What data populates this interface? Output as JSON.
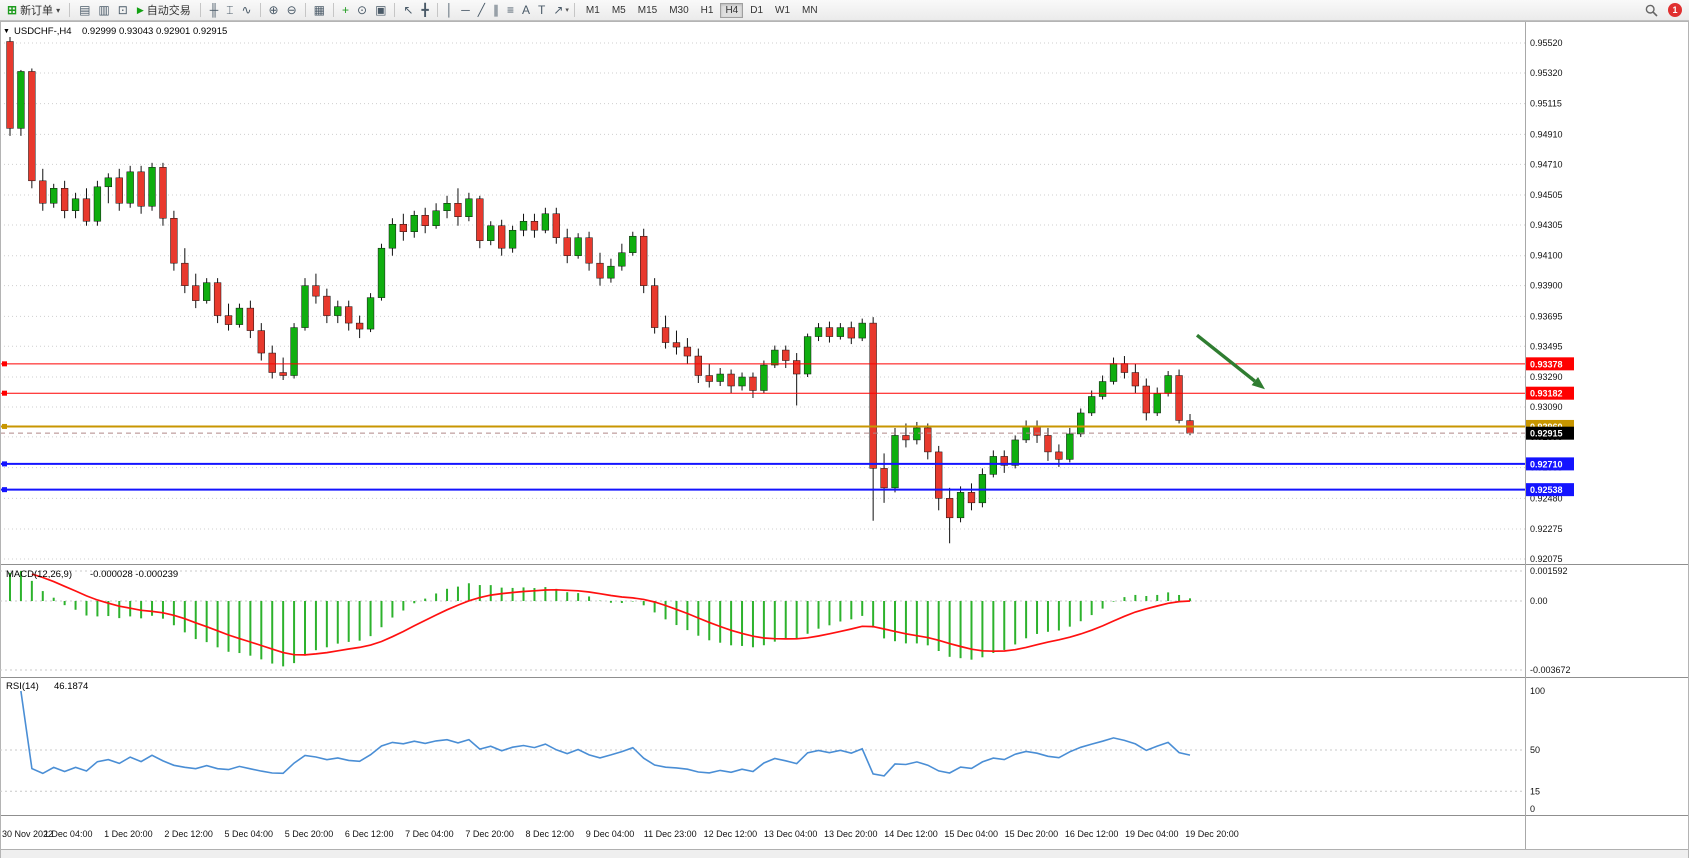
{
  "toolbar": {
    "new_order_label": "新订单",
    "auto_trading_label": "自动交易",
    "badge_count": "1",
    "active_timeframe": "H4",
    "timeframes": [
      "M1",
      "M5",
      "M15",
      "M30",
      "H1",
      "H4",
      "D1",
      "W1",
      "MN"
    ],
    "icons": {
      "new_order": "⊞",
      "caret": "▾",
      "play": "▶"
    },
    "pre_group": [
      {
        "name": "new-chart-icon",
        "glyph": "▤"
      },
      {
        "name": "profiles-icon",
        "glyph": "▥"
      },
      {
        "name": "data-window-icon",
        "glyph": "⊡"
      }
    ],
    "tool_groups": [
      [
        {
          "name": "bar-chart-icon",
          "glyph": "╫"
        },
        {
          "name": "candlestick-chart-icon",
          "glyph": "⌶"
        },
        {
          "name": "line-chart-icon",
          "glyph": "∿"
        }
      ],
      [
        {
          "name": "zoom-in-icon",
          "glyph": "⊕"
        },
        {
          "name": "zoom-out-icon",
          "glyph": "⊖"
        }
      ],
      [
        {
          "name": "tile-windows-icon",
          "glyph": "▦"
        }
      ],
      [
        {
          "name": "indicators-icon",
          "glyph": "+",
          "color": "#1f9c1f"
        },
        {
          "name": "periods-icon",
          "glyph": "⊙"
        },
        {
          "name": "templates-icon",
          "glyph": "▣"
        }
      ],
      [
        {
          "name": "cursor-icon",
          "glyph": "↖"
        },
        {
          "name": "crosshair-icon",
          "glyph": "╋"
        }
      ],
      [
        {
          "name": "vertical-line-icon",
          "glyph": "│"
        },
        {
          "name": "horizontal-line-icon",
          "glyph": "─"
        },
        {
          "name": "trendline-icon",
          "glyph": "╱"
        },
        {
          "name": "channel-icon",
          "glyph": "∥"
        },
        {
          "name": "fibonacci-icon",
          "glyph": "≡"
        },
        {
          "name": "text-icon",
          "glyph": "A"
        },
        {
          "name": "label-icon",
          "glyph": "T"
        },
        {
          "name": "arrows-icon",
          "glyph": "↗",
          "caret": true
        }
      ]
    ]
  },
  "chart_data": {
    "type": "candlestick",
    "symbol": "USDCHF-",
    "period": "H4",
    "title": "USDCHF-,H4",
    "ohlc_text": "0.92999 0.93043 0.92901 0.92915",
    "icons": {
      "chart_menu": "▼"
    },
    "price_factor": 1e-05,
    "price_range": {
      "top": 0.9552,
      "bottom": 0.92075
    },
    "price_axis_ticks": [
      "0.95520",
      "0.95320",
      "0.95115",
      "0.94910",
      "0.94710",
      "0.94505",
      "0.94305",
      "0.94100",
      "0.93900",
      "0.93695",
      "0.93495",
      "0.93290",
      "0.93090",
      "0.92890",
      "0.92685",
      "0.92480",
      "0.92275",
      "0.92075"
    ],
    "time_labels": [
      "30 Nov 2022",
      "1 Dec 04:00",
      "1 Dec 20:00",
      "2 Dec 12:00",
      "5 Dec 04:00",
      "5 Dec 20:00",
      "6 Dec 12:00",
      "7 Dec 04:00",
      "7 Dec 20:00",
      "8 Dec 12:00",
      "9 Dec 04:00",
      "11 Dec 23:00",
      "12 Dec 12:00",
      "13 Dec 04:00",
      "13 Dec 20:00",
      "14 Dec 12:00",
      "15 Dec 04:00",
      "15 Dec 20:00",
      "16 Dec 12:00",
      "19 Dec 04:00",
      "19 Dec 20:00"
    ],
    "levels": [
      {
        "value": 0.93378,
        "label": "0.93378",
        "color": "#ff0000",
        "width": 1
      },
      {
        "value": 0.93182,
        "label": "0.93182",
        "color": "#ff0000",
        "width": 1
      },
      {
        "value": 0.9296,
        "label": "0.92960",
        "color": "#c89600",
        "width": 2
      },
      {
        "value": 0.9271,
        "label": "0.92710",
        "color": "#1414ff",
        "width": 2
      },
      {
        "value": 0.92538,
        "label": "0.92538",
        "color": "#1414ff",
        "width": 2
      }
    ],
    "current_price": {
      "value": 0.92915,
      "label": "0.92915",
      "tag_color": "#000000"
    },
    "arrow": {
      "points_to_value": 0.93182,
      "color": "#2f7d31"
    },
    "colors": {
      "up": "#0fae0f",
      "down": "#e8392d",
      "wick": "#101010",
      "grid": "#cfcfcf",
      "macd_hist": "#2db22d",
      "macd_signal": "#ff1010",
      "rsi_line": "#4a8ed5",
      "background": "#ffffff"
    },
    "macd": {
      "name": "MACD(12,26,9)",
      "values_text": "-0.000028 -0.000239",
      "fast": 12,
      "slow": 26,
      "signal": 9,
      "scale_labels": [
        "0.001592",
        "0.00",
        "-0.003672"
      ]
    },
    "rsi": {
      "name": "RSI(14)",
      "value_text": "46.1874",
      "period": 14,
      "scale_labels": [
        "100",
        "50",
        "15",
        "0"
      ],
      "scale_values": [
        100,
        50,
        15,
        0
      ]
    },
    "candles": [
      [
        95530,
        95560,
        94900,
        94950
      ],
      [
        94950,
        95340,
        94900,
        95330
      ],
      [
        95330,
        95350,
        94550,
        94600
      ],
      [
        94600,
        94680,
        94400,
        94450
      ],
      [
        94450,
        94580,
        94420,
        94550
      ],
      [
        94550,
        94600,
        94350,
        94400
      ],
      [
        94400,
        94520,
        94350,
        94480
      ],
      [
        94480,
        94550,
        94300,
        94330
      ],
      [
        94330,
        94600,
        94300,
        94560
      ],
      [
        94560,
        94650,
        94450,
        94620
      ],
      [
        94620,
        94680,
        94400,
        94450
      ],
      [
        94450,
        94700,
        94420,
        94660
      ],
      [
        94660,
        94700,
        94380,
        94430
      ],
      [
        94430,
        94720,
        94400,
        94690
      ],
      [
        94690,
        94720,
        94300,
        94350
      ],
      [
        94350,
        94400,
        94000,
        94050
      ],
      [
        94050,
        94150,
        93850,
        93900
      ],
      [
        93900,
        93980,
        93750,
        93800
      ],
      [
        93800,
        93950,
        93780,
        93920
      ],
      [
        93920,
        93950,
        93650,
        93700
      ],
      [
        93700,
        93780,
        93600,
        93640
      ],
      [
        93640,
        93780,
        93620,
        93750
      ],
      [
        93750,
        93800,
        93550,
        93600
      ],
      [
        93600,
        93650,
        93400,
        93450
      ],
      [
        93450,
        93500,
        93280,
        93320
      ],
      [
        93320,
        93420,
        93270,
        93300
      ],
      [
        93300,
        93650,
        93280,
        93620
      ],
      [
        93620,
        93950,
        93600,
        93900
      ],
      [
        93900,
        93980,
        93780,
        93830
      ],
      [
        93830,
        93880,
        93650,
        93700
      ],
      [
        93700,
        93800,
        93650,
        93760
      ],
      [
        93760,
        93800,
        93600,
        93650
      ],
      [
        93650,
        93700,
        93550,
        93610
      ],
      [
        93610,
        93850,
        93590,
        93820
      ],
      [
        93820,
        94180,
        93800,
        94150
      ],
      [
        94150,
        94350,
        94100,
        94310
      ],
      [
        94310,
        94380,
        94200,
        94260
      ],
      [
        94260,
        94400,
        94220,
        94370
      ],
      [
        94370,
        94420,
        94250,
        94300
      ],
      [
        94300,
        94450,
        94280,
        94400
      ],
      [
        94400,
        94500,
        94350,
        94450
      ],
      [
        94450,
        94550,
        94300,
        94360
      ],
      [
        94360,
        94520,
        94330,
        94480
      ],
      [
        94480,
        94500,
        94150,
        94200
      ],
      [
        94200,
        94330,
        94170,
        94300
      ],
      [
        94300,
        94340,
        94100,
        94150
      ],
      [
        94150,
        94300,
        94120,
        94270
      ],
      [
        94270,
        94380,
        94230,
        94330
      ],
      [
        94330,
        94380,
        94220,
        94270
      ],
      [
        94270,
        94420,
        94250,
        94380
      ],
      [
        94380,
        94420,
        94180,
        94220
      ],
      [
        94220,
        94280,
        94050,
        94100
      ],
      [
        94100,
        94250,
        94080,
        94220
      ],
      [
        94220,
        94260,
        94000,
        94050
      ],
      [
        94050,
        94120,
        93900,
        93950
      ],
      [
        93950,
        94080,
        93920,
        94030
      ],
      [
        94030,
        94180,
        94000,
        94120
      ],
      [
        94120,
        94260,
        94100,
        94230
      ],
      [
        94230,
        94280,
        93850,
        93900
      ],
      [
        93900,
        93950,
        93580,
        93620
      ],
      [
        93620,
        93700,
        93480,
        93520
      ],
      [
        93520,
        93600,
        93440,
        93490
      ],
      [
        93490,
        93550,
        93380,
        93430
      ],
      [
        93430,
        93480,
        93250,
        93300
      ],
      [
        93300,
        93380,
        93220,
        93260
      ],
      [
        93260,
        93350,
        93230,
        93310
      ],
      [
        93310,
        93340,
        93180,
        93230
      ],
      [
        93230,
        93320,
        93200,
        93290
      ],
      [
        93290,
        93320,
        93150,
        93200
      ],
      [
        93200,
        93400,
        93180,
        93370
      ],
      [
        93370,
        93500,
        93350,
        93470
      ],
      [
        93470,
        93500,
        93350,
        93400
      ],
      [
        93400,
        93450,
        93100,
        93310
      ],
      [
        93310,
        93580,
        93290,
        93560
      ],
      [
        93560,
        93650,
        93530,
        93620
      ],
      [
        93620,
        93660,
        93520,
        93560
      ],
      [
        93560,
        93650,
        93540,
        93620
      ],
      [
        93620,
        93660,
        93510,
        93550
      ],
      [
        93550,
        93680,
        93530,
        93650
      ],
      [
        93650,
        93690,
        92330,
        92680
      ],
      [
        92680,
        92780,
        92450,
        92550
      ],
      [
        92550,
        92950,
        92520,
        92900
      ],
      [
        92900,
        92980,
        92820,
        92870
      ],
      [
        92870,
        92990,
        92840,
        92950
      ],
      [
        92950,
        92980,
        92740,
        92790
      ],
      [
        92790,
        92830,
        92400,
        92480
      ],
      [
        92480,
        92550,
        92180,
        92350
      ],
      [
        92350,
        92560,
        92320,
        92520
      ],
      [
        92520,
        92580,
        92400,
        92450
      ],
      [
        92450,
        92680,
        92420,
        92640
      ],
      [
        92640,
        92800,
        92620,
        92760
      ],
      [
        92760,
        92800,
        92650,
        92700
      ],
      [
        92700,
        92900,
        92680,
        92870
      ],
      [
        92870,
        93000,
        92850,
        92960
      ],
      [
        92960,
        93000,
        92850,
        92900
      ],
      [
        92900,
        92950,
        92730,
        92790
      ],
      [
        92790,
        92840,
        92690,
        92740
      ],
      [
        92740,
        92950,
        92720,
        92910
      ],
      [
        92910,
        93080,
        92890,
        93050
      ],
      [
        93050,
        93200,
        93030,
        93160
      ],
      [
        93160,
        93300,
        93140,
        93260
      ],
      [
        93260,
        93420,
        93240,
        93380
      ],
      [
        93380,
        93430,
        93280,
        93320
      ],
      [
        93320,
        93380,
        93180,
        93230
      ],
      [
        93230,
        93280,
        93000,
        93050
      ],
      [
        93050,
        93220,
        93030,
        93180
      ],
      [
        93180,
        93330,
        93160,
        93300
      ],
      [
        93300,
        93340,
        92980,
        93000
      ],
      [
        92999,
        93043,
        92901,
        92915
      ]
    ]
  }
}
